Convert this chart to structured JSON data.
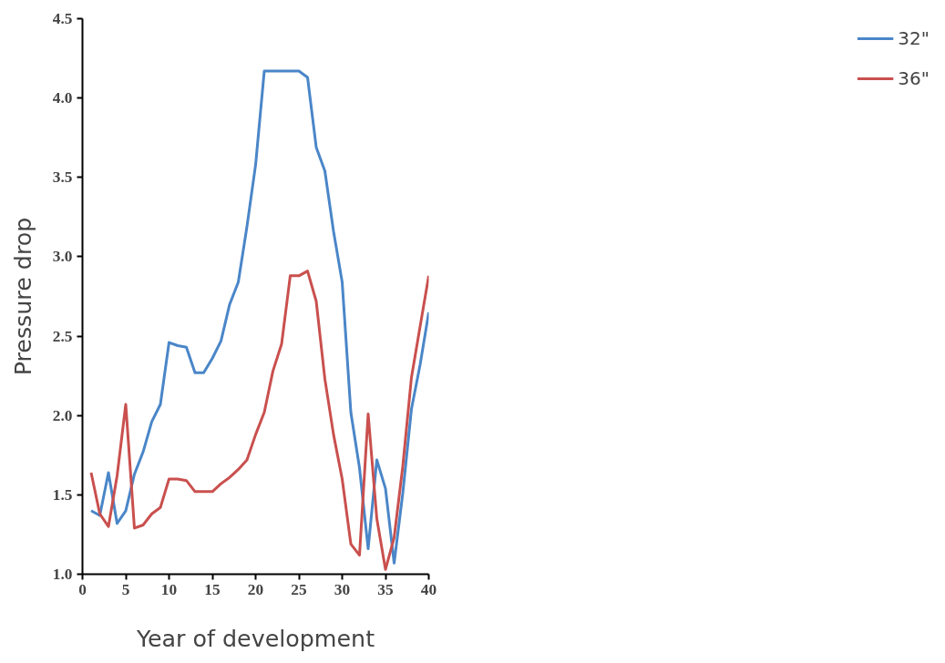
{
  "chart_data": {
    "type": "line",
    "xlabel": "Year of development",
    "ylabel": "Pressure drop",
    "x": [
      1,
      2,
      3,
      4,
      5,
      6,
      7,
      8,
      9,
      10,
      11,
      12,
      13,
      14,
      15,
      16,
      17,
      18,
      19,
      20,
      21,
      22,
      23,
      24,
      25,
      26,
      27,
      28,
      29,
      30,
      31,
      32,
      33,
      34,
      35,
      36,
      37,
      38,
      39,
      40
    ],
    "series": [
      {
        "name": "32\"",
        "color": "#4a86c8",
        "values": [
          1.4,
          1.37,
          1.64,
          1.32,
          1.4,
          1.63,
          1.77,
          1.96,
          2.07,
          2.46,
          2.44,
          2.43,
          2.27,
          2.27,
          2.36,
          2.47,
          2.7,
          2.84,
          3.19,
          3.58,
          4.17,
          4.17,
          4.17,
          4.17,
          4.17,
          4.13,
          3.69,
          3.54,
          3.16,
          2.84,
          2.02,
          1.67,
          1.16,
          1.72,
          1.54,
          1.07,
          1.51,
          2.04,
          2.32,
          2.65
        ]
      },
      {
        "name": "36\"",
        "color": "#c9504e",
        "values": [
          1.64,
          1.38,
          1.3,
          1.62,
          2.07,
          1.29,
          1.31,
          1.38,
          1.42,
          1.6,
          1.6,
          1.59,
          1.52,
          1.52,
          1.52,
          1.57,
          1.61,
          1.66,
          1.72,
          1.88,
          2.02,
          2.28,
          2.45,
          2.88,
          2.88,
          2.91,
          2.72,
          2.23,
          1.88,
          1.6,
          1.19,
          1.12,
          2.01,
          1.35,
          1.03,
          1.23,
          1.68,
          2.24,
          2.56,
          2.88
        ]
      }
    ],
    "xlim": [
      0,
      40
    ],
    "ylim": [
      1.0,
      4.5
    ],
    "xticks": [
      0,
      5,
      10,
      15,
      20,
      25,
      30,
      35,
      40
    ],
    "yticks": [
      {
        "value": 1.0,
        "label": "1.0"
      },
      {
        "value": 1.5,
        "label": "1.5"
      },
      {
        "value": 2.0,
        "label": "2.0"
      },
      {
        "value": 2.5,
        "label": "2.5"
      },
      {
        "value": 3.0,
        "label": "3.0"
      },
      {
        "value": 3.5,
        "label": "3.5"
      },
      {
        "value": 4.0,
        "label": "4.0"
      },
      {
        "value": 4.5,
        "label": "4.5"
      }
    ],
    "grid": false,
    "legend": "right",
    "marker": "none",
    "line_style": "solid"
  }
}
